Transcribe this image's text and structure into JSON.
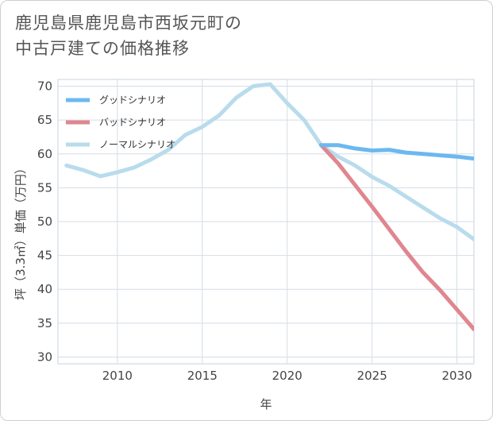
{
  "title_lines": [
    "鹿児島県鹿児島市西坂元町の",
    "中古戸建ての価格推移"
  ],
  "chart_data": {
    "type": "line",
    "title": "鹿児島県鹿児島市西坂元町の中古戸建ての価格推移",
    "xlabel": "年",
    "ylabel": "坪（3.3㎡）単価（万円）",
    "xlim": [
      2006.5,
      2031
    ],
    "ylim": [
      29,
      71
    ],
    "x_ticks": [
      2010,
      2015,
      2020,
      2025,
      2030
    ],
    "y_ticks": [
      30,
      35,
      40,
      45,
      50,
      55,
      60,
      65,
      70
    ],
    "grid": true,
    "legend_position": "top-left",
    "series": [
      {
        "name": "グッドシナリオ",
        "color": "#6cb8f0",
        "width": 5,
        "x": [
          2022,
          2023,
          2024,
          2025,
          2026,
          2027,
          2028,
          2029,
          2030,
          2031
        ],
        "y": [
          61.3,
          61.3,
          60.8,
          60.5,
          60.6,
          60.2,
          60.0,
          59.8,
          59.6,
          59.3
        ]
      },
      {
        "name": "バッドシナリオ",
        "color": "#e0868f",
        "width": 5,
        "x": [
          2022,
          2023,
          2024,
          2025,
          2026,
          2027,
          2028,
          2029,
          2030,
          2031
        ],
        "y": [
          61.3,
          58.6,
          55.4,
          52.2,
          48.9,
          45.6,
          42.5,
          39.9,
          37.0,
          34.1
        ]
      },
      {
        "name": "ノーマルシナリオ",
        "color": "#b9dcec",
        "width": 5,
        "x": [
          2007,
          2008,
          2009,
          2010,
          2011,
          2012,
          2013,
          2014,
          2015,
          2016,
          2017,
          2018,
          2019,
          2020,
          2021,
          2022,
          2023,
          2024,
          2025,
          2026,
          2027,
          2028,
          2029,
          2030,
          2031
        ],
        "y": [
          58.3,
          57.6,
          56.7,
          57.3,
          58.0,
          59.2,
          60.6,
          62.8,
          64.0,
          65.7,
          68.3,
          70.0,
          70.3,
          67.5,
          65.0,
          61.3,
          59.6,
          58.3,
          56.6,
          55.3,
          53.7,
          52.1,
          50.5,
          49.2,
          47.4
        ]
      }
    ]
  }
}
